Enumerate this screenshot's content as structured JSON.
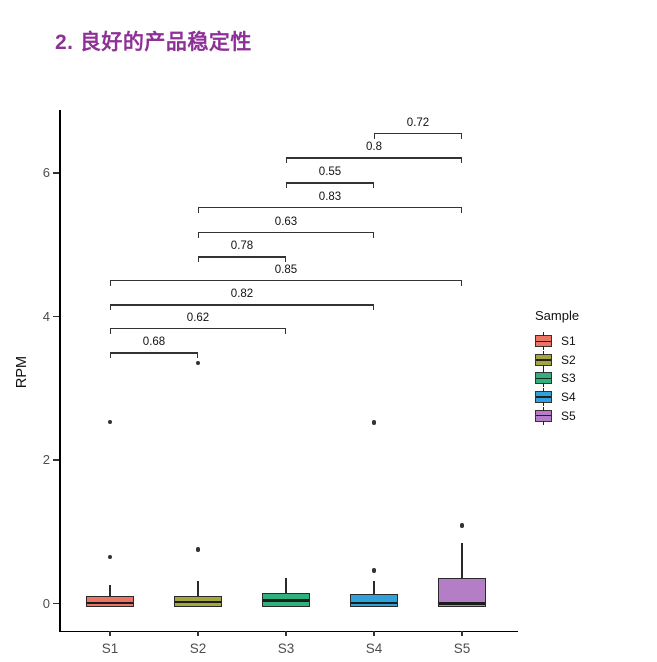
{
  "title": "2. 良好的产品稳定性",
  "title_color": "#8E3197",
  "chart_data": {
    "type": "boxplot",
    "ylabel": "RPM",
    "xlabel": "",
    "legend_title": "Sample",
    "legend_position": "right",
    "categories": [
      "S1",
      "S2",
      "S3",
      "S4",
      "S5"
    ],
    "y_ticks": [
      0,
      2,
      4,
      6
    ],
    "ylim": [
      -0.38,
      6.9
    ],
    "grid": "off",
    "series": [
      {
        "name": "S1",
        "color": "#EB7467",
        "q1": -0.05,
        "median": 0.01,
        "q3": 0.11,
        "whisker_low": -0.05,
        "whisker_high": 0.26,
        "outliers": [
          0.65,
          2.53
        ]
      },
      {
        "name": "S2",
        "color": "#A4A53B",
        "q1": -0.05,
        "median": 0.02,
        "q3": 0.11,
        "whisker_low": -0.05,
        "whisker_high": 0.32,
        "outliers": [
          0.75,
          3.35
        ]
      },
      {
        "name": "S3",
        "color": "#2EB17D",
        "q1": -0.05,
        "median": 0.04,
        "q3": 0.15,
        "whisker_low": -0.05,
        "whisker_high": 0.36,
        "outliers": []
      },
      {
        "name": "S4",
        "color": "#31A1D9",
        "q1": -0.05,
        "median": 0.01,
        "q3": 0.13,
        "whisker_low": -0.05,
        "whisker_high": 0.32,
        "outliers": [
          0.46,
          2.52
        ]
      },
      {
        "name": "S5",
        "color": "#B47EC6",
        "q1": -0.05,
        "median": 0.0,
        "q3": 0.36,
        "whisker_low": -0.05,
        "whisker_high": 0.85,
        "outliers": [
          1.09
        ]
      }
    ],
    "comparisons": [
      {
        "label": "0.68",
        "a": "S1",
        "b": "S2",
        "y": 3.5
      },
      {
        "label": "0.62",
        "a": "S1",
        "b": "S3",
        "y": 3.84
      },
      {
        "label": "0.82",
        "a": "S1",
        "b": "S4",
        "y": 4.17
      },
      {
        "label": "0.85",
        "a": "S1",
        "b": "S5",
        "y": 4.51
      },
      {
        "label": "0.78",
        "a": "S2",
        "b": "S3",
        "y": 4.84
      },
      {
        "label": "0.63",
        "a": "S2",
        "b": "S4",
        "y": 5.18
      },
      {
        "label": "0.83",
        "a": "S2",
        "b": "S5",
        "y": 5.53
      },
      {
        "label": "0.55",
        "a": "S3",
        "b": "S4",
        "y": 5.87
      },
      {
        "label": "0.8",
        "a": "S3",
        "b": "S5",
        "y": 6.22
      },
      {
        "label": "0.72",
        "a": "S4",
        "b": "S5",
        "y": 6.56
      }
    ]
  }
}
